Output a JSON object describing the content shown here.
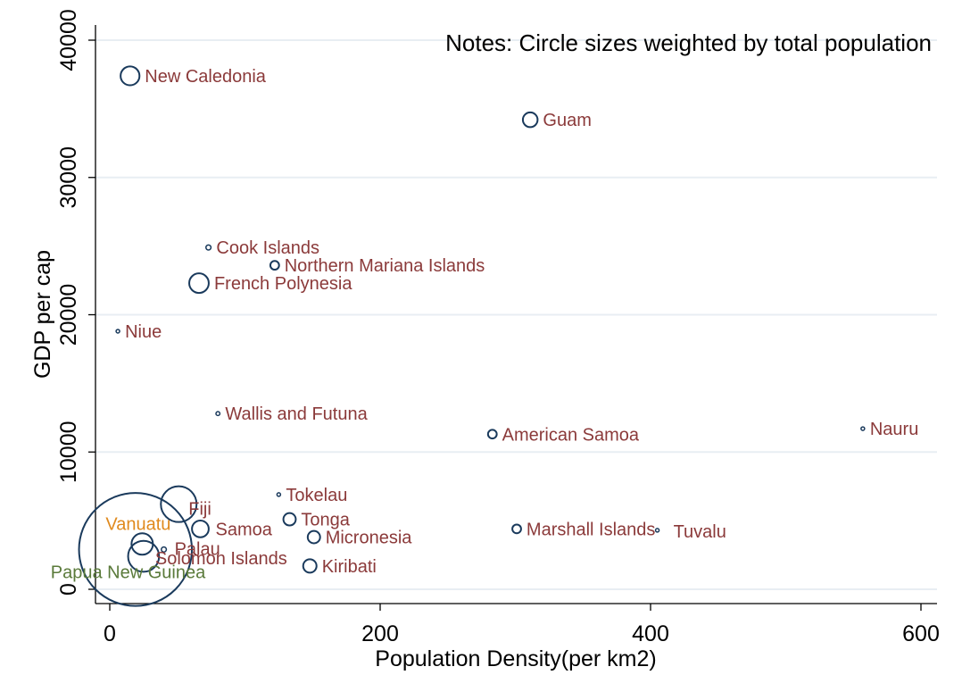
{
  "chart_data": {
    "type": "scatter",
    "title": "",
    "note": "Notes: Circle sizes weighted by total population",
    "xlabel": "Population Density(per km2)",
    "ylabel": "GDP per cap",
    "xlim": [
      -12,
      606
    ],
    "ylim": [
      -1000,
      41000
    ],
    "xticks": [
      0,
      200,
      400,
      600
    ],
    "yticks": [
      0,
      10000,
      20000,
      30000,
      40000
    ],
    "grid": true,
    "colors": {
      "marker": "#1a3a5c",
      "label_default": "#8b3a3a",
      "label_vanuatu": "#e08a1e",
      "label_png": "#5a7a3a",
      "grid": "#e8eef3",
      "background": "#ffffff"
    },
    "points": [
      {
        "label": "New Caledonia",
        "x": 15,
        "y": 37400,
        "pop_weight": 0.28
      },
      {
        "label": "Guam",
        "x": 311,
        "y": 34200,
        "pop_weight": 0.17
      },
      {
        "label": "Cook Islands",
        "x": 73,
        "y": 24900,
        "pop_weight": 0.02
      },
      {
        "label": "Northern Mariana Islands",
        "x": 122,
        "y": 23600,
        "pop_weight": 0.06
      },
      {
        "label": "French Polynesia",
        "x": 66,
        "y": 22300,
        "pop_weight": 0.3
      },
      {
        "label": "Niue",
        "x": 6,
        "y": 18800,
        "pop_weight": 0.001
      },
      {
        "label": "Wallis and Futuna",
        "x": 80,
        "y": 12800,
        "pop_weight": 0.012
      },
      {
        "label": "American Samoa",
        "x": 283,
        "y": 11300,
        "pop_weight": 0.06
      },
      {
        "label": "Nauru",
        "x": 557,
        "y": 11700,
        "pop_weight": 0.01
      },
      {
        "label": "Tokelau",
        "x": 125,
        "y": 6900,
        "pop_weight": 0.001
      },
      {
        "label": "Fiji",
        "x": 51,
        "y": 6200,
        "pop_weight": 1.0
      },
      {
        "label": "Tonga",
        "x": 133,
        "y": 5100,
        "pop_weight": 0.12
      },
      {
        "label": "Samoa",
        "x": 67,
        "y": 4400,
        "pop_weight": 0.22
      },
      {
        "label": "Micronesia",
        "x": 151,
        "y": 3800,
        "pop_weight": 0.12
      },
      {
        "label": "Marshall Islands",
        "x": 301,
        "y": 4400,
        "pop_weight": 0.06
      },
      {
        "label": "Tuvalu",
        "x": 405,
        "y": 4300,
        "pop_weight": 0.01
      },
      {
        "label": "Vanuatu",
        "x": 24,
        "y": 3300,
        "pop_weight": 0.36
      },
      {
        "label": "Palau",
        "x": 40,
        "y": 2900,
        "pop_weight": 0.02
      },
      {
        "label": "Solomon Islands",
        "x": 25,
        "y": 2400,
        "pop_weight": 0.75
      },
      {
        "label": "Kiribati",
        "x": 148,
        "y": 1700,
        "pop_weight": 0.14
      },
      {
        "label": "Papua New Guinea",
        "x": 19,
        "y": 2900,
        "pop_weight": 10.0
      }
    ]
  }
}
